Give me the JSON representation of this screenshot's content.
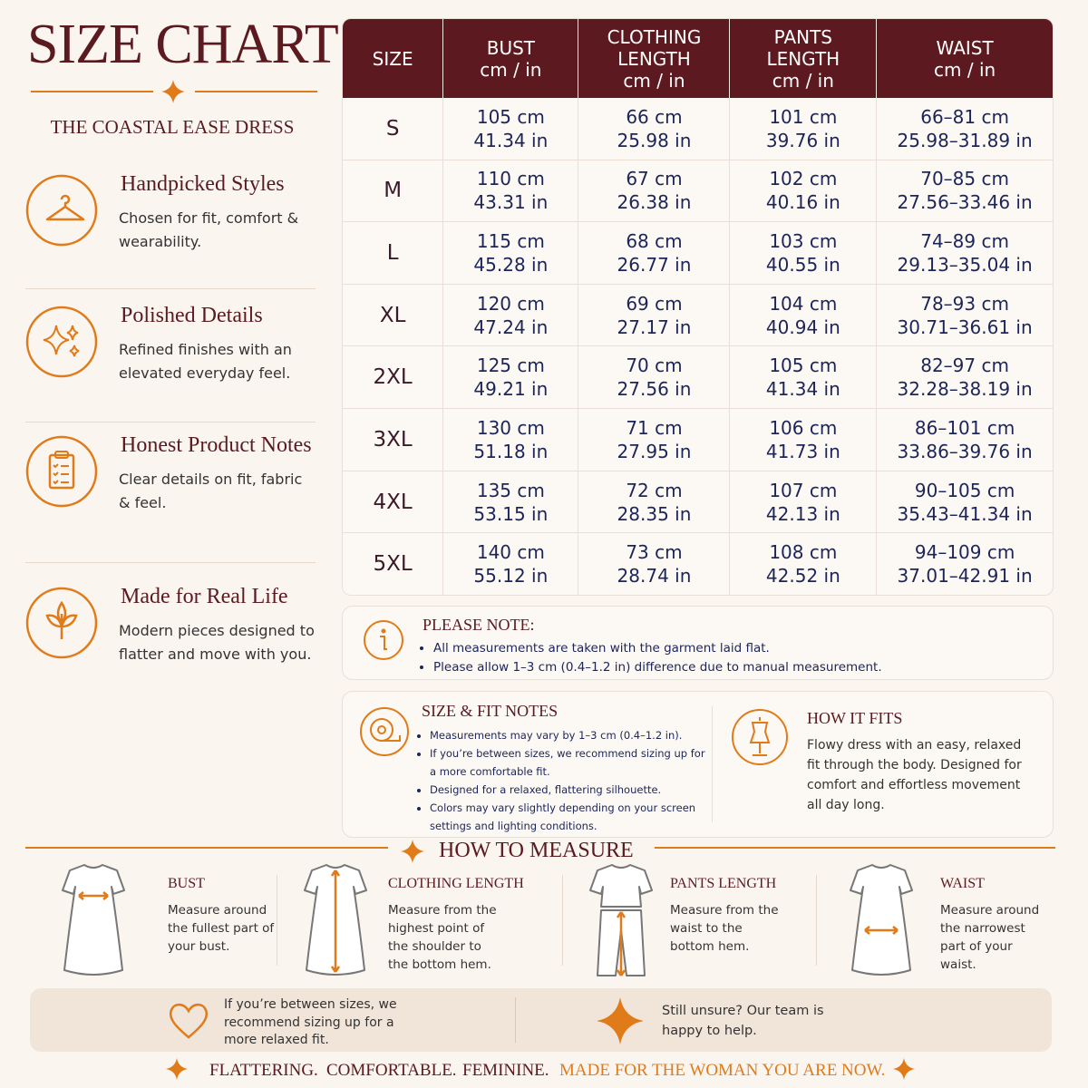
{
  "header": {
    "title": "SIZE CHART",
    "subtitle": "THE COASTAL EASE DRESS"
  },
  "features": [
    {
      "title": "Handpicked Styles",
      "text": "Chosen for fit, comfort & wearability."
    },
    {
      "title": "Polished Details",
      "text": "Refined finishes with an elevated everyday feel."
    },
    {
      "title": "Honest Product Notes",
      "text": "Clear details on fit, fabric & feel."
    },
    {
      "title": "Made for Real Life",
      "text": "Modern pieces designed to flatter and move with you."
    }
  ],
  "table": {
    "columns": [
      {
        "title": "SIZE"
      },
      {
        "title": "BUST",
        "unit": "cm / in"
      },
      {
        "title": "CLOTHING LENGTH",
        "unit": "cm / in"
      },
      {
        "title": "PANTS LENGTH",
        "unit": "cm / in"
      },
      {
        "title": "WAIST",
        "unit": "cm / in"
      }
    ],
    "rows": [
      {
        "size": "S",
        "values": [
          [
            "105 cm",
            "41.34 in"
          ],
          [
            "66 cm",
            "25.98 in"
          ],
          [
            "101 cm",
            "39.76 in"
          ],
          [
            "66–81 cm",
            "25.98–31.89 in"
          ]
        ]
      },
      {
        "size": "M",
        "values": [
          [
            "110 cm",
            "43.31 in"
          ],
          [
            "67 cm",
            "26.38 in"
          ],
          [
            "102 cm",
            "40.16 in"
          ],
          [
            "70–85 cm",
            "27.56–33.46 in"
          ]
        ]
      },
      {
        "size": "L",
        "values": [
          [
            "115 cm",
            "45.28 in"
          ],
          [
            "68 cm",
            "26.77 in"
          ],
          [
            "103 cm",
            "40.55 in"
          ],
          [
            "74–89 cm",
            "29.13–35.04 in"
          ]
        ]
      },
      {
        "size": "XL",
        "values": [
          [
            "120 cm",
            "47.24 in"
          ],
          [
            "69 cm",
            "27.17 in"
          ],
          [
            "104 cm",
            "40.94 in"
          ],
          [
            "78–93 cm",
            "30.71–36.61 in"
          ]
        ]
      },
      {
        "size": "2XL",
        "values": [
          [
            "125 cm",
            "49.21 in"
          ],
          [
            "70 cm",
            "27.56 in"
          ],
          [
            "105 cm",
            "41.34 in"
          ],
          [
            "82–97 cm",
            "32.28–38.19 in"
          ]
        ]
      },
      {
        "size": "3XL",
        "values": [
          [
            "130 cm",
            "51.18 in"
          ],
          [
            "71 cm",
            "27.95 in"
          ],
          [
            "106 cm",
            "41.73 in"
          ],
          [
            "86–101 cm",
            "33.86–39.76 in"
          ]
        ]
      },
      {
        "size": "4XL",
        "values": [
          [
            "135 cm",
            "53.15 in"
          ],
          [
            "72 cm",
            "28.35 in"
          ],
          [
            "107 cm",
            "42.13 in"
          ],
          [
            "90–105 cm",
            "35.43–41.34 in"
          ]
        ]
      },
      {
        "size": "5XL",
        "values": [
          [
            "140 cm",
            "55.12 in"
          ],
          [
            "73 cm",
            "28.74 in"
          ],
          [
            "108 cm",
            "42.52 in"
          ],
          [
            "94–109 cm",
            "37.01–42.91 in"
          ]
        ]
      }
    ]
  },
  "please_note": {
    "title": "PLEASE NOTE:",
    "items": [
      "All measurements are taken with the garment laid flat.",
      "Please allow 1–3 cm (0.4–1.2 in) difference due to manual measurement."
    ]
  },
  "size_fit_notes": {
    "title": "SIZE & FIT NOTES",
    "items": [
      "Measurements may vary by 1–3 cm (0.4–1.2 in).",
      "If you’re between sizes, we recommend sizing up for a more comfortable fit.",
      "Designed for a relaxed, flattering silhouette.",
      "Colors may vary slightly depending on your screen settings and lighting conditions."
    ]
  },
  "how_it_fits": {
    "title": "HOW IT FITS",
    "text": "Flowy dress with an easy, relaxed fit through the body. Designed for comfort and effortless movement all day long."
  },
  "how_to_measure": {
    "title": "HOW TO MEASURE",
    "items": [
      {
        "title": "BUST",
        "text": "Measure around the fullest part of your bust."
      },
      {
        "title": "CLOTHING LENGTH",
        "text": "Measure from the highest point of the shoulder to the bottom hem."
      },
      {
        "title": "PANTS LENGTH",
        "text": "Measure from the waist to the bottom hem."
      },
      {
        "title": "WAIST",
        "text": "Measure around the narrowest part of your waist."
      }
    ]
  },
  "tips": [
    "If you’re between sizes, we recommend sizing up for a more relaxed fit.",
    "Still unsure? Our team is happy to help."
  ],
  "tagline": [
    "FLATTERING.",
    "COMFORTABLE.",
    "FEMININE.",
    "MADE FOR THE WOMAN YOU ARE NOW."
  ]
}
